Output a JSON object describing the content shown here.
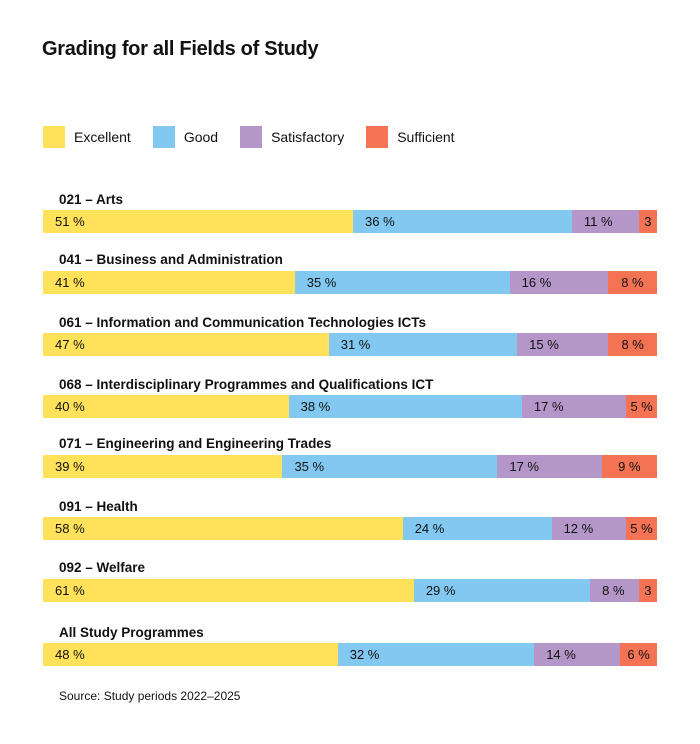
{
  "chart_data": {
    "type": "bar",
    "orientation": "horizontal",
    "stacked": true,
    "title": "Grading for all Fields of Study",
    "legend_position": "top-left",
    "categories": [
      "021 – Arts",
      "041 – Business and Administration",
      "061 – Information and Communication Technologies ICTs",
      "068 – Interdisciplinary Programmes and Qualifications ICT",
      "071  – Engineering and Engineering Trades",
      "091 – Health",
      "092 – Welfare",
      "All Study Programmes"
    ],
    "series": [
      {
        "name": "Excellent",
        "color": "#FFE15A",
        "values": [
          51,
          41,
          47,
          40,
          39,
          58,
          61,
          48
        ],
        "labels": [
          "51 %",
          "41 %",
          "47 %",
          "40 %",
          "39 %",
          "58 %",
          "61 %",
          "48 %"
        ]
      },
      {
        "name": "Good",
        "color": "#82C8F0",
        "values": [
          36,
          35,
          31,
          38,
          35,
          24,
          29,
          32
        ],
        "labels": [
          "36 %",
          "35 %",
          "31 %",
          "38 %",
          "35 %",
          "24 %",
          "29 %",
          "32 %"
        ]
      },
      {
        "name": "Satisfactory",
        "color": "#B496C8",
        "values": [
          11,
          16,
          15,
          17,
          17,
          12,
          8,
          14
        ],
        "labels": [
          "11 %",
          "16 %",
          "15 %",
          "17 %",
          "17 %",
          "12 %",
          "8 %",
          "14 %"
        ]
      },
      {
        "name": "Sufficient",
        "color": "#F47355",
        "values": [
          3,
          8,
          8,
          5,
          9,
          5,
          3,
          6
        ],
        "labels": [
          "3",
          "8 %",
          "8 %",
          "5 %",
          "9 %",
          "5 %",
          "3",
          "6 %"
        ]
      }
    ],
    "unit": "%",
    "grid": false,
    "source": "Source: Study periods 2022–2025"
  }
}
